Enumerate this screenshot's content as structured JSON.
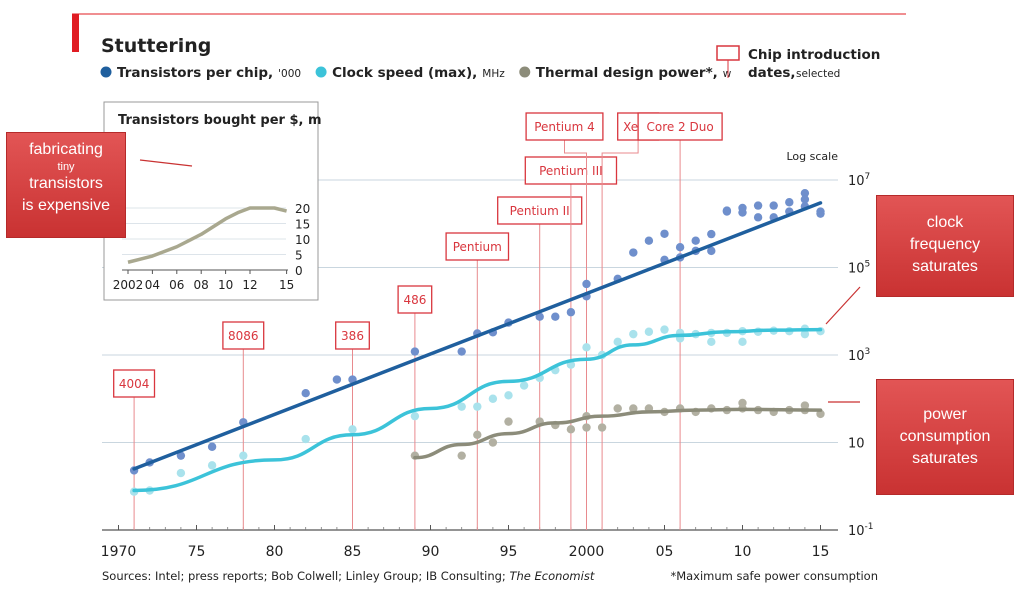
{
  "chart_data": {
    "type": "scatter",
    "title": "Stuttering",
    "yscale": "log",
    "scale_label": "Log scale",
    "x_ticks": [
      "1970",
      "75",
      "80",
      "85",
      "90",
      "95",
      "2000",
      "05",
      "10",
      "15"
    ],
    "y_ticks": [
      "10^7",
      "10^5",
      "10^3",
      "10",
      "10^-1"
    ],
    "legend": [
      {
        "name": "Transistors per chip,",
        "unit": "'000",
        "color": "#1f5f9e"
      },
      {
        "name": "Clock speed (max),",
        "unit": "MHz",
        "color": "#3cc3d9"
      },
      {
        "name": "Thermal design power*,",
        "unit": "w",
        "color": "#8c8c7a"
      }
    ],
    "legend_box": {
      "line1": "Chip introduction",
      "line2": "dates,",
      "line2_small": "selected"
    },
    "chips": [
      {
        "name": "4004",
        "year": 1971
      },
      {
        "name": "8086",
        "year": 1978
      },
      {
        "name": "386",
        "year": 1985
      },
      {
        "name": "486",
        "year": 1989
      },
      {
        "name": "Pentium",
        "year": 1993
      },
      {
        "name": "Pentium II",
        "year": 1997
      },
      {
        "name": "Pentium III",
        "year": 1999
      },
      {
        "name": "Pentium 4",
        "year": 2000
      },
      {
        "name": "Xeon",
        "year": 2001
      },
      {
        "name": "Core 2 Duo",
        "year": 2006
      }
    ],
    "series": [
      {
        "name": "Transistors per chip ('000)",
        "color": "#1f5f9e",
        "dot": "#6f8fcc",
        "points": [
          [
            1971,
            2.3
          ],
          [
            1972,
            3.5
          ],
          [
            1974,
            5
          ],
          [
            1976,
            8
          ],
          [
            1978,
            29
          ],
          [
            1982,
            134
          ],
          [
            1984,
            275
          ],
          [
            1985,
            275
          ],
          [
            1989,
            1200
          ],
          [
            1992,
            1200
          ],
          [
            1993,
            3100
          ],
          [
            1994,
            3300
          ],
          [
            1995,
            5500
          ],
          [
            1997,
            7500
          ],
          [
            1998,
            7500
          ],
          [
            1999,
            9500
          ],
          [
            2000,
            42000
          ],
          [
            2000,
            22000
          ],
          [
            2002,
            55000
          ],
          [
            2003,
            220000
          ],
          [
            2004,
            410000
          ],
          [
            2005,
            590000
          ],
          [
            2005,
            150000
          ],
          [
            2006,
            291000
          ],
          [
            2006,
            170000
          ],
          [
            2007,
            410000
          ],
          [
            2007,
            240000
          ],
          [
            2008,
            240000
          ],
          [
            2008,
            580000
          ],
          [
            2009,
            1900000
          ],
          [
            2009,
            2000000
          ],
          [
            2010,
            2300000
          ],
          [
            2010,
            1800000
          ],
          [
            2011,
            2600000
          ],
          [
            2011,
            1400000
          ],
          [
            2012,
            2600000
          ],
          [
            2012,
            1400000
          ],
          [
            2013,
            3100000
          ],
          [
            2013,
            1900000
          ],
          [
            2014,
            5000000
          ],
          [
            2014,
            2500000
          ],
          [
            2014,
            3600000
          ],
          [
            2015,
            1900000
          ],
          [
            2015,
            1700000
          ]
        ],
        "trend": [
          [
            1971,
            2.5
          ],
          [
            2015,
            3000000
          ]
        ]
      },
      {
        "name": "Clock speed (max) (MHz)",
        "color": "#3cc3d9",
        "dot": "#a9e2ec",
        "points": [
          [
            1971,
            0.75
          ],
          [
            1972,
            0.8
          ],
          [
            1974,
            2
          ],
          [
            1976,
            3
          ],
          [
            1978,
            5
          ],
          [
            1982,
            12
          ],
          [
            1985,
            20
          ],
          [
            1989,
            40
          ],
          [
            1992,
            66
          ],
          [
            1993,
            66
          ],
          [
            1994,
            100
          ],
          [
            1995,
            120
          ],
          [
            1996,
            200
          ],
          [
            1997,
            300
          ],
          [
            1998,
            450
          ],
          [
            1999,
            600
          ],
          [
            2000,
            1500
          ],
          [
            2001,
            1000
          ],
          [
            2002,
            2000
          ],
          [
            2003,
            3000
          ],
          [
            2004,
            3400
          ],
          [
            2005,
            3800
          ],
          [
            2006,
            3200
          ],
          [
            2006,
            2400
          ],
          [
            2007,
            3000
          ],
          [
            2008,
            3200
          ],
          [
            2008,
            2000
          ],
          [
            2009,
            3200
          ],
          [
            2010,
            3500
          ],
          [
            2010,
            2000
          ],
          [
            2011,
            3400
          ],
          [
            2012,
            3600
          ],
          [
            2013,
            3500
          ],
          [
            2014,
            4000
          ],
          [
            2014,
            3000
          ],
          [
            2015,
            3500
          ]
        ],
        "trend": [
          [
            1971,
            0.8
          ],
          [
            1980,
            4
          ],
          [
            1985,
            15
          ],
          [
            1990,
            60
          ],
          [
            1995,
            250
          ],
          [
            2000,
            800
          ],
          [
            2003,
            1700
          ],
          [
            2006,
            2800
          ],
          [
            2009,
            3400
          ],
          [
            2012,
            3700
          ],
          [
            2015,
            3800
          ]
        ]
      },
      {
        "name": "Thermal design power (w)",
        "color": "#8c8c7a",
        "dot": "#b2b0a2",
        "points": [
          [
            1989,
            5
          ],
          [
            1992,
            5
          ],
          [
            1993,
            15
          ],
          [
            1994,
            10
          ],
          [
            1995,
            30
          ],
          [
            1997,
            30
          ],
          [
            1998,
            25
          ],
          [
            1999,
            20
          ],
          [
            2000,
            40
          ],
          [
            2000,
            22
          ],
          [
            2001,
            22
          ],
          [
            2002,
            60
          ],
          [
            2003,
            60
          ],
          [
            2004,
            60
          ],
          [
            2005,
            50
          ],
          [
            2006,
            60
          ],
          [
            2007,
            50
          ],
          [
            2008,
            60
          ],
          [
            2009,
            55
          ],
          [
            2010,
            80
          ],
          [
            2010,
            60
          ],
          [
            2011,
            55
          ],
          [
            2012,
            50
          ],
          [
            2013,
            55
          ],
          [
            2014,
            70
          ],
          [
            2014,
            55
          ],
          [
            2015,
            45
          ]
        ],
        "trend": [
          [
            1989,
            4.5
          ],
          [
            1992,
            9
          ],
          [
            1995,
            16
          ],
          [
            1998,
            28
          ],
          [
            2001,
            40
          ],
          [
            2004,
            50
          ],
          [
            2007,
            55
          ],
          [
            2010,
            57
          ],
          [
            2015,
            55
          ]
        ]
      }
    ],
    "inset": {
      "title": "Transistors bought per $, m",
      "x_ticks": [
        "2002",
        "04",
        "06",
        "08",
        "10",
        "12",
        "15"
      ],
      "y_ticks": [
        "0",
        "5",
        "10",
        "15",
        "20"
      ],
      "line": [
        [
          2002,
          2.5
        ],
        [
          2003,
          3.5
        ],
        [
          2004,
          4.5
        ],
        [
          2005,
          6
        ],
        [
          2006,
          7.5
        ],
        [
          2007,
          9.5
        ],
        [
          2008,
          11.5
        ],
        [
          2009,
          14
        ],
        [
          2010,
          16.5
        ],
        [
          2011,
          18.5
        ],
        [
          2012,
          20
        ],
        [
          2013,
          20
        ],
        [
          2014,
          20
        ],
        [
          2015,
          19
        ]
      ]
    },
    "footer_sources_prefix": "Sources: Intel; press reports; Bob Colwell; Linley Group; IB Consulting; ",
    "footer_sources_italic": "The Economist",
    "footer_note": "*Maximum safe power consumption"
  },
  "callouts": {
    "left_line1": "fabricating",
    "left_small": "tiny",
    "left_line2": "transistors",
    "left_line3": "is expensive",
    "clock": [
      "clock",
      "frequency",
      "saturates"
    ],
    "power": [
      "power",
      "consumption",
      "saturates"
    ]
  },
  "colors": {
    "accent_red": "#e01c23",
    "chip_box": "#d9363e"
  }
}
